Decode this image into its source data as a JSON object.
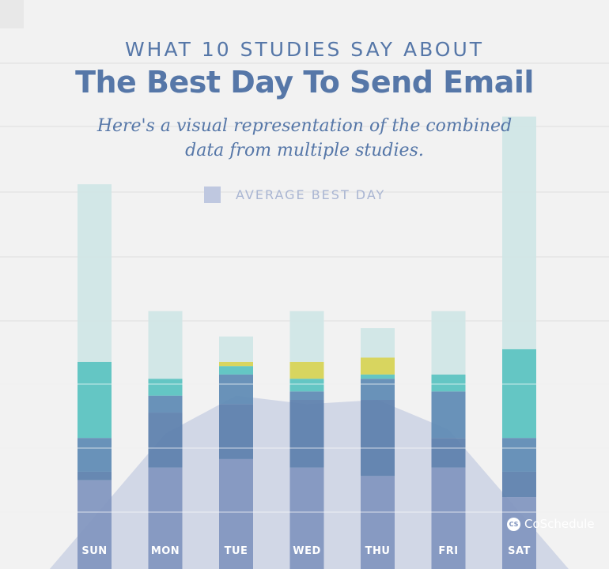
{
  "header": {
    "kicker": "WHAT 10 STUDIES SAY ABOUT",
    "title": "The Best Day To Send Email",
    "subtitle": "Here's a visual representation of the combined data from multiple studies."
  },
  "legend": {
    "label": "AVERAGE BEST DAY",
    "color": "#bfc8e0"
  },
  "brand": {
    "name": "CoSchedule",
    "icon": "coschedule-logo-icon"
  },
  "colors": {
    "light_teal": "#cfe6e6",
    "teal": "#58c2c0",
    "yellow": "#d6d352",
    "mid_blue": "#5d8ab4",
    "deep_blue": "#5b7fac",
    "slate_blue": "#8095bf",
    "area": "#c6cee2",
    "label": "#ffffff"
  },
  "chart_data": {
    "type": "bar",
    "categories": [
      "SUN",
      "MON",
      "TUE",
      "WED",
      "THU",
      "FRI",
      "SAT"
    ],
    "ylim": [
      0,
      100
    ],
    "bars": [
      {
        "total": 91,
        "segments": [
          {
            "c": "slate_blue",
            "v": 21
          },
          {
            "c": "deep_blue",
            "v": 2
          },
          {
            "c": "mid_blue",
            "v": 8
          },
          {
            "c": "teal",
            "v": 18
          },
          {
            "c": "light_teal",
            "v": 42
          }
        ]
      },
      {
        "total": 61,
        "segments": [
          {
            "c": "slate_blue",
            "v": 24
          },
          {
            "c": "deep_blue",
            "v": 13
          },
          {
            "c": "mid_blue",
            "v": 4
          },
          {
            "c": "teal",
            "v": 4
          },
          {
            "c": "light_teal",
            "v": 16
          }
        ]
      },
      {
        "total": 55,
        "segments": [
          {
            "c": "slate_blue",
            "v": 26
          },
          {
            "c": "deep_blue",
            "v": 13
          },
          {
            "c": "mid_blue",
            "v": 7
          },
          {
            "c": "teal",
            "v": 2
          },
          {
            "c": "yellow",
            "v": 1
          },
          {
            "c": "light_teal",
            "v": 6
          }
        ]
      },
      {
        "total": 61,
        "segments": [
          {
            "c": "slate_blue",
            "v": 24
          },
          {
            "c": "deep_blue",
            "v": 16
          },
          {
            "c": "mid_blue",
            "v": 2
          },
          {
            "c": "teal",
            "v": 3
          },
          {
            "c": "yellow",
            "v": 4
          },
          {
            "c": "light_teal",
            "v": 12
          }
        ]
      },
      {
        "total": 57,
        "segments": [
          {
            "c": "slate_blue",
            "v": 22
          },
          {
            "c": "deep_blue",
            "v": 18
          },
          {
            "c": "mid_blue",
            "v": 5
          },
          {
            "c": "teal",
            "v": 1
          },
          {
            "c": "yellow",
            "v": 4
          },
          {
            "c": "light_teal",
            "v": 7
          }
        ]
      },
      {
        "total": 61,
        "segments": [
          {
            "c": "slate_blue",
            "v": 24
          },
          {
            "c": "deep_blue",
            "v": 7
          },
          {
            "c": "mid_blue",
            "v": 11
          },
          {
            "c": "teal",
            "v": 4
          },
          {
            "c": "light_teal",
            "v": 15
          }
        ]
      },
      {
        "total": 107,
        "segments": [
          {
            "c": "slate_blue",
            "v": 17
          },
          {
            "c": "deep_blue",
            "v": 6
          },
          {
            "c": "mid_blue",
            "v": 8
          },
          {
            "c": "teal",
            "v": 21
          },
          {
            "c": "light_teal",
            "v": 55
          }
        ]
      }
    ],
    "average_area": [
      -5,
      32,
      41,
      39,
      40,
      33,
      -5
    ]
  }
}
